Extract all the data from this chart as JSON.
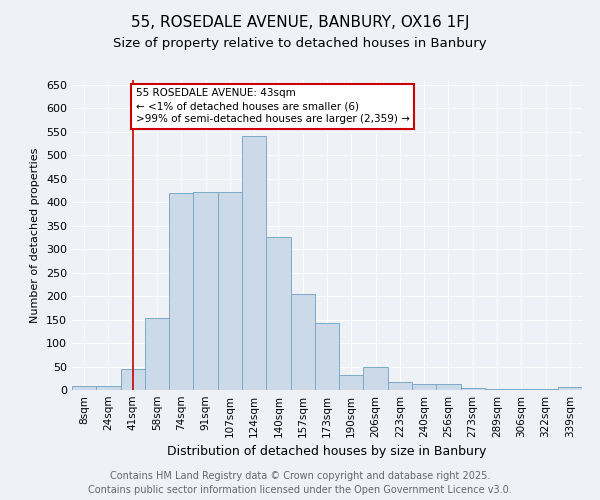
{
  "title": "55, ROSEDALE AVENUE, BANBURY, OX16 1FJ",
  "subtitle": "Size of property relative to detached houses in Banbury",
  "xlabel": "Distribution of detached houses by size in Banbury",
  "ylabel": "Number of detached properties",
  "bar_color": "#ccd9e8",
  "bar_edge_color": "#7aaac8",
  "background_color": "#eef2f7",
  "grid_color": "#ffffff",
  "categories": [
    "8sqm",
    "24sqm",
    "41sqm",
    "58sqm",
    "74sqm",
    "91sqm",
    "107sqm",
    "124sqm",
    "140sqm",
    "157sqm",
    "173sqm",
    "190sqm",
    "206sqm",
    "223sqm",
    "240sqm",
    "256sqm",
    "273sqm",
    "289sqm",
    "306sqm",
    "322sqm",
    "339sqm"
  ],
  "values": [
    8,
    8,
    45,
    153,
    420,
    422,
    422,
    540,
    325,
    205,
    143,
    33,
    49,
    16,
    13,
    12,
    5,
    2,
    3,
    2,
    7
  ],
  "ylim": [
    0,
    660
  ],
  "yticks": [
    0,
    50,
    100,
    150,
    200,
    250,
    300,
    350,
    400,
    450,
    500,
    550,
    600,
    650
  ],
  "vline_x_index": 2,
  "vline_color": "#cc0000",
  "ann_text_line1": "55 ROSEDALE AVENUE: 43sqm",
  "ann_text_line2": "← <1% of detached houses are smaller (6)",
  "ann_text_line3": ">99% of semi-detached houses are larger (2,359) →",
  "ann_box_color": "white",
  "ann_edge_color": "#cc0000",
  "footnote_line1": "Contains HM Land Registry data © Crown copyright and database right 2025.",
  "footnote_line2": "Contains public sector information licensed under the Open Government Licence v3.0.",
  "title_fontsize": 11,
  "subtitle_fontsize": 9.5,
  "ylabel_fontsize": 8,
  "xlabel_fontsize": 9,
  "tick_fontsize": 7.5,
  "ytick_fontsize": 8,
  "footnote_fontsize": 7,
  "annotation_fontsize": 7.5
}
